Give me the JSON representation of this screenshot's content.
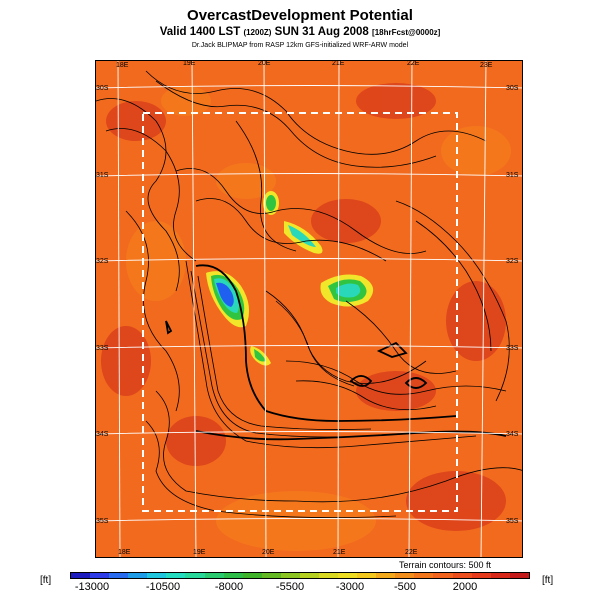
{
  "title": "OvercastDevelopment Potential",
  "subtitle_main": "Valid 1400 LST",
  "subtitle_small1": "(1200Z)",
  "subtitle_date": "SUN 31 Aug 2008",
  "subtitle_small2": "[18hrFcst@0000z]",
  "credit": "Dr.Jack BLIPMAP from RASP 12km GFS-initialized WRF-ARW model",
  "map": {
    "lon_top": [
      "18E",
      "19E",
      "20E",
      "21E",
      "22E",
      "23E"
    ],
    "lon_bottom": [
      "18E",
      "19E",
      "20E",
      "21E",
      "22E"
    ],
    "lat_left": [
      "30S",
      "31S",
      "32S",
      "33S",
      "34S",
      "35S"
    ],
    "lat_right": [
      "30S",
      "31S",
      "32S",
      "33S",
      "34S",
      "35S"
    ],
    "colors": {
      "background": "#f26a1e",
      "ocean": "#f7821c",
      "dark_red": "#cf2a1a",
      "yellow": "#f2e62a",
      "green": "#30c440",
      "cyan": "#29d8b8",
      "blue": "#2060f0",
      "contour": "#000000",
      "grid": "#ffffff",
      "domain_box": "#ffffff"
    }
  },
  "terrain_note": "Terrain contours: 500 ft",
  "unit_left": "[ft]",
  "unit_right": "[ft]",
  "colorbar": {
    "colors": [
      "#1d1dbf",
      "#2d3ce6",
      "#2a6cf0",
      "#1e9ce8",
      "#1fc6de",
      "#24dcc0",
      "#27d89a",
      "#2acb70",
      "#2ebd48",
      "#3fb32a",
      "#64b824",
      "#8cc422",
      "#b6d022",
      "#d8d822",
      "#ecdc22",
      "#f2c81e",
      "#f2aa1c",
      "#f28e1c",
      "#f2761c",
      "#f2641e",
      "#ec4e1e",
      "#e63a1c",
      "#d8281a",
      "#c41a1a"
    ],
    "labels": [
      "-13000",
      "-10500",
      "-8000",
      "-5500",
      "-3000",
      "-500",
      "2000"
    ]
  }
}
